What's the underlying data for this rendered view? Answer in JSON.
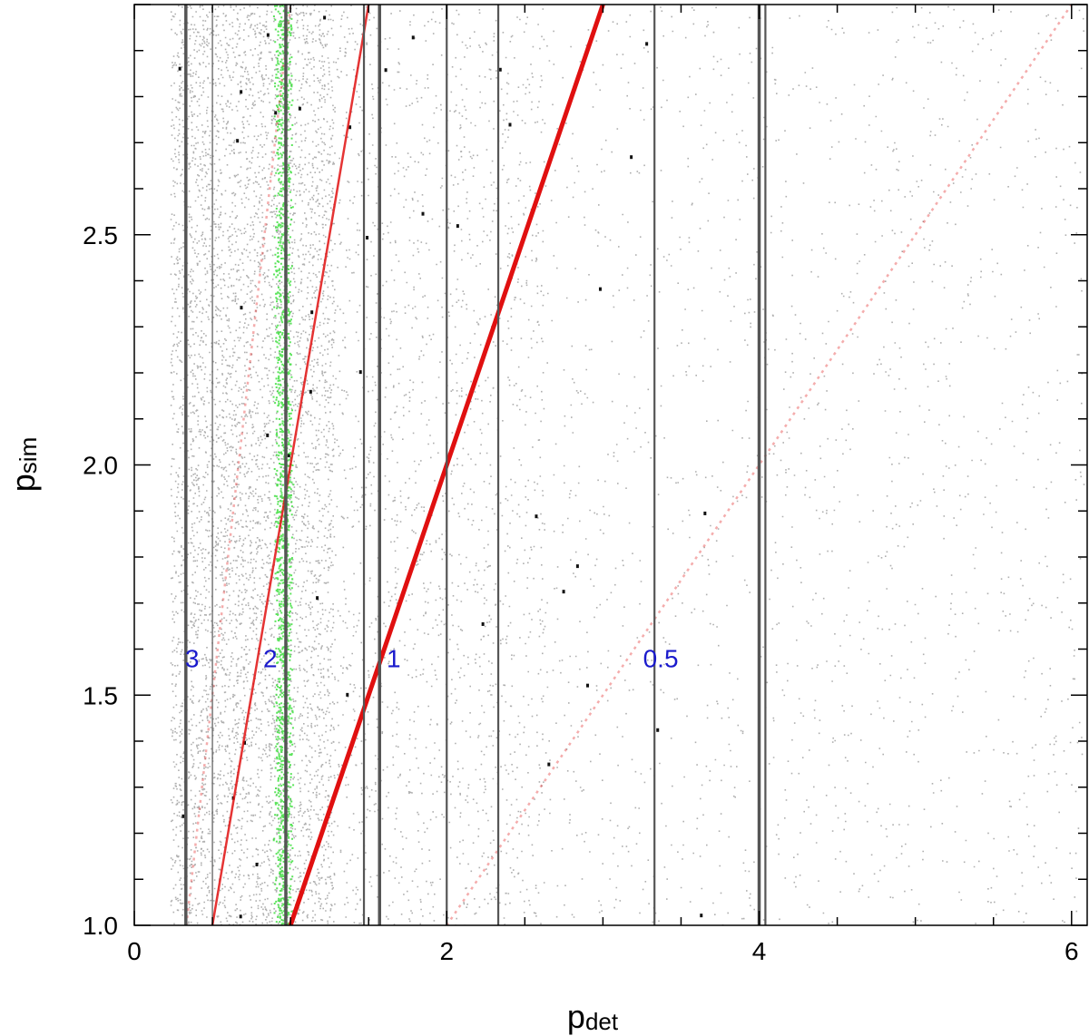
{
  "chart_data": {
    "type": "scatter",
    "xlabel_main": "p",
    "xlabel_sub": "det",
    "ylabel_main": "p",
    "ylabel_sub": "sim",
    "xlim": [
      0,
      6.1
    ],
    "ylim": [
      1.0,
      3.0
    ],
    "x_ticks": [
      0,
      2,
      4,
      6
    ],
    "x_tick_labels": [
      "0",
      "2",
      "4",
      "6"
    ],
    "y_ticks": [
      1.0,
      1.5,
      2.0,
      2.5
    ],
    "y_tick_labels": [
      "1.0",
      "1.5",
      "2.0",
      "2.5"
    ],
    "vertical_lines": [
      {
        "x": 0.33,
        "weight": "heavy"
      },
      {
        "x": 0.5,
        "weight": "light"
      },
      {
        "x": 0.97,
        "weight": "heavy"
      },
      {
        "x": 1.47,
        "weight": "medium"
      },
      {
        "x": 1.57,
        "weight": "heavy"
      },
      {
        "x": 2.0,
        "weight": "medium"
      },
      {
        "x": 2.33,
        "weight": "medium"
      },
      {
        "x": 3.33,
        "weight": "medium"
      },
      {
        "x": 4.0,
        "weight": "heavy"
      },
      {
        "x": 4.04,
        "weight": "medium"
      }
    ],
    "ratio_lines": [
      {
        "ratio": 3,
        "style": "faint"
      },
      {
        "ratio": 2,
        "style": "medium"
      },
      {
        "ratio": 1,
        "style": "strong"
      },
      {
        "ratio": 0.5,
        "style": "faint"
      }
    ],
    "green_band": {
      "x": 0.95,
      "y_range": [
        1.0,
        3.0
      ]
    },
    "annotations": [
      {
        "text": "3",
        "x": 0.37,
        "y": 1.58
      },
      {
        "text": "2",
        "x": 0.87,
        "y": 1.58
      },
      {
        "text": "1",
        "x": 1.66,
        "y": 1.58
      },
      {
        "text": "0.5",
        "x": 3.37,
        "y": 1.58
      }
    ],
    "colors": {
      "scatter": "#6e6e6e",
      "vertical_line": "#555555",
      "ratio_line": "#e01010",
      "green_band": "#33dd33",
      "annotation": "#1a1acc"
    }
  }
}
